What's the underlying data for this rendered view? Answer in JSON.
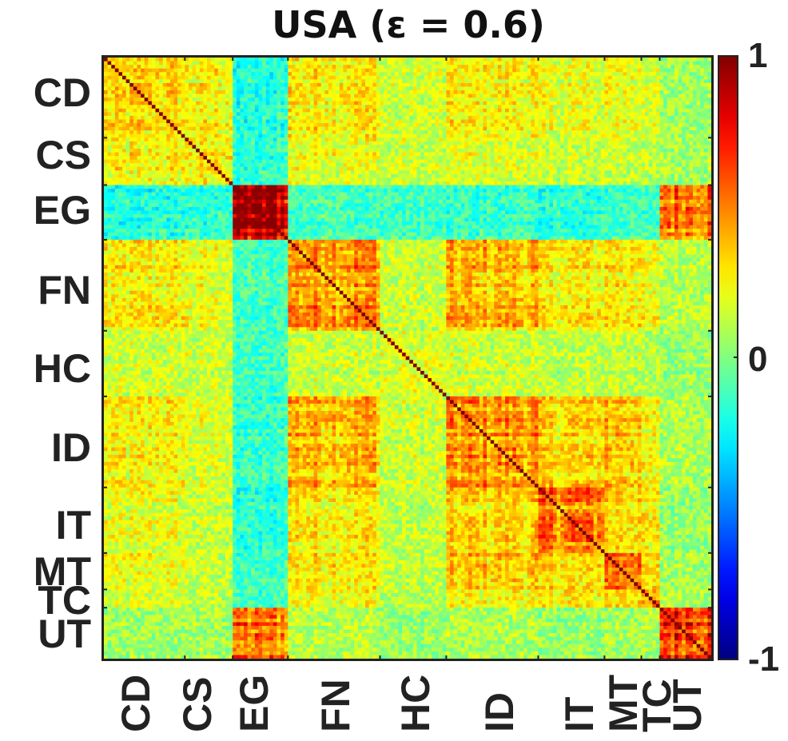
{
  "chart_data": {
    "type": "heatmap",
    "title": "USA (ε = 0.6)",
    "matrix_size": 165,
    "sectors": [
      {
        "label": "CD",
        "start": 0,
        "end": 22
      },
      {
        "label": "CS",
        "start": 22,
        "end": 35
      },
      {
        "label": "EG",
        "start": 35,
        "end": 50
      },
      {
        "label": "FN",
        "start": 50,
        "end": 75
      },
      {
        "label": "HC",
        "start": 75,
        "end": 93
      },
      {
        "label": "ID",
        "start": 93,
        "end": 118
      },
      {
        "label": "IT",
        "start": 118,
        "end": 136
      },
      {
        "label": "MT",
        "start": 136,
        "end": 146
      },
      {
        "label": "TC",
        "start": 146,
        "end": 151
      },
      {
        "label": "UT",
        "start": 151,
        "end": 165
      }
    ],
    "ylabels": [
      "CD",
      "CS",
      "EG",
      "FN",
      "HC",
      "ID",
      "IT",
      "MT",
      "TC",
      "UT"
    ],
    "xlabels": [
      "CD",
      "CS",
      "EG",
      "FN",
      "HC",
      "ID",
      "IT",
      "MT",
      "TC",
      "UT"
    ],
    "block_mean": {
      "CD": {
        "CD": 0.3,
        "CS": 0.25,
        "EG": -0.18,
        "FN": 0.28,
        "HC": 0.15,
        "ID": 0.25,
        "IT": 0.2,
        "MT": 0.22,
        "TC": 0.15,
        "UT": 0.06
      },
      "CS": {
        "CS": 0.28,
        "EG": -0.15,
        "FN": 0.22,
        "HC": 0.15,
        "ID": 0.18,
        "IT": 0.14,
        "MT": 0.15,
        "TC": 0.12,
        "UT": 0.08
      },
      "EG": {
        "EG": 0.92,
        "FN": -0.12,
        "HC": -0.12,
        "ID": -0.14,
        "IT": -0.16,
        "MT": -0.12,
        "TC": -0.1,
        "UT": 0.55
      },
      "FN": {
        "FN": 0.48,
        "HC": 0.15,
        "ID": 0.4,
        "IT": 0.28,
        "MT": 0.3,
        "TC": 0.22,
        "UT": 0.12
      },
      "HC": {
        "HC": 0.18,
        "ID": 0.15,
        "IT": 0.12,
        "MT": 0.14,
        "TC": 0.1,
        "UT": 0.05
      },
      "ID": {
        "ID": 0.45,
        "IT": 0.32,
        "MT": 0.38,
        "TC": 0.22,
        "UT": 0.1
      },
      "IT": {
        "IT": 0.5,
        "MT": 0.32,
        "TC": 0.25,
        "UT": 0.05
      },
      "MT": {
        "MT": 0.58,
        "TC": 0.3,
        "UT": 0.08
      },
      "TC": {
        "TC": 0.35,
        "UT": 0.08
      },
      "UT": {
        "UT": 0.75
      }
    },
    "diagonal": 1,
    "colorbar": {
      "colormap": "jet",
      "min": -1,
      "max": 1,
      "ticks": [
        "1",
        "0",
        "-1"
      ]
    },
    "grid": false
  }
}
